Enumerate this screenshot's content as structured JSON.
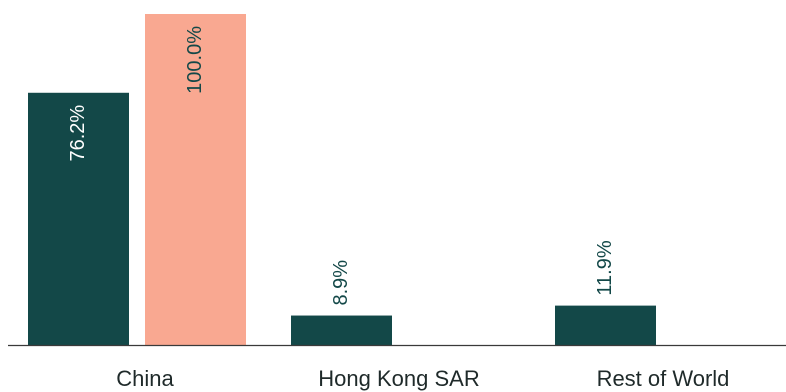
{
  "chart_data": {
    "type": "bar",
    "categories": [
      "China",
      "Hong Kong SAR",
      "Rest of World"
    ],
    "series": [
      {
        "values": [
          76.2,
          8.9,
          11.9
        ],
        "labels": [
          "76.2%",
          "8.9%",
          "11.9%"
        ],
        "color": "#134848"
      },
      {
        "values": [
          100.0,
          null,
          null
        ],
        "labels": [
          "100.0%",
          null,
          null
        ],
        "color": "#f9a891"
      }
    ],
    "value_label_colors": {
      "inside_dark_bar": "#ffffff",
      "inside_light_bar": "#134848",
      "above_bar": "#134848"
    },
    "axis_color": "#3a3a3a",
    "title": "",
    "xlabel": "",
    "ylabel": "",
    "ylim": [
      0,
      100
    ],
    "grid": false,
    "legend": "none"
  }
}
